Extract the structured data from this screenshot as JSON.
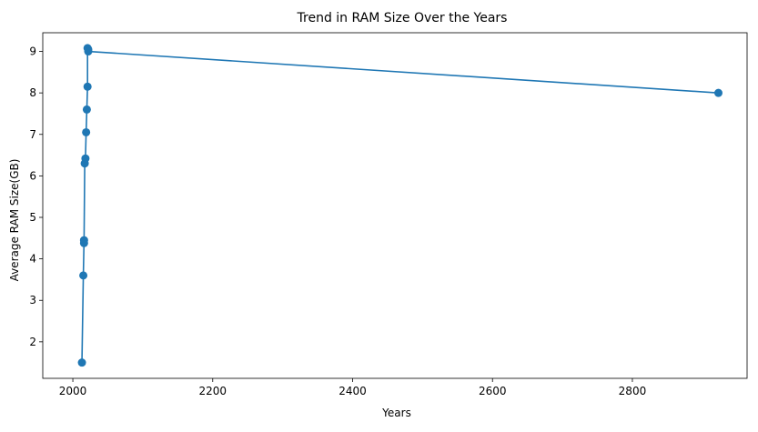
{
  "chart_data": {
    "type": "line",
    "title": "Trend in RAM Size Over the Years",
    "xlabel": "Years",
    "ylabel": "Average RAM Size(GB)",
    "xlim": [
      1957,
      2964
    ],
    "ylim": [
      1.12,
      9.45
    ],
    "xticks": [
      2000,
      2200,
      2400,
      2600,
      2800
    ],
    "yticks": [
      2,
      3,
      4,
      5,
      6,
      7,
      8,
      9
    ],
    "grid": false,
    "marker": "circle",
    "series": [
      {
        "name": "",
        "color": "#1f77b4",
        "x": [
          2013,
          2015,
          2016,
          2016,
          2017,
          2018,
          2019,
          2020,
          2021,
          2021,
          2022,
          2022,
          2923
        ],
        "y": [
          1.5,
          3.6,
          4.45,
          4.38,
          6.3,
          6.42,
          7.05,
          7.6,
          8.15,
          9.08,
          9.05,
          9.0,
          8.0
        ]
      }
    ]
  }
}
